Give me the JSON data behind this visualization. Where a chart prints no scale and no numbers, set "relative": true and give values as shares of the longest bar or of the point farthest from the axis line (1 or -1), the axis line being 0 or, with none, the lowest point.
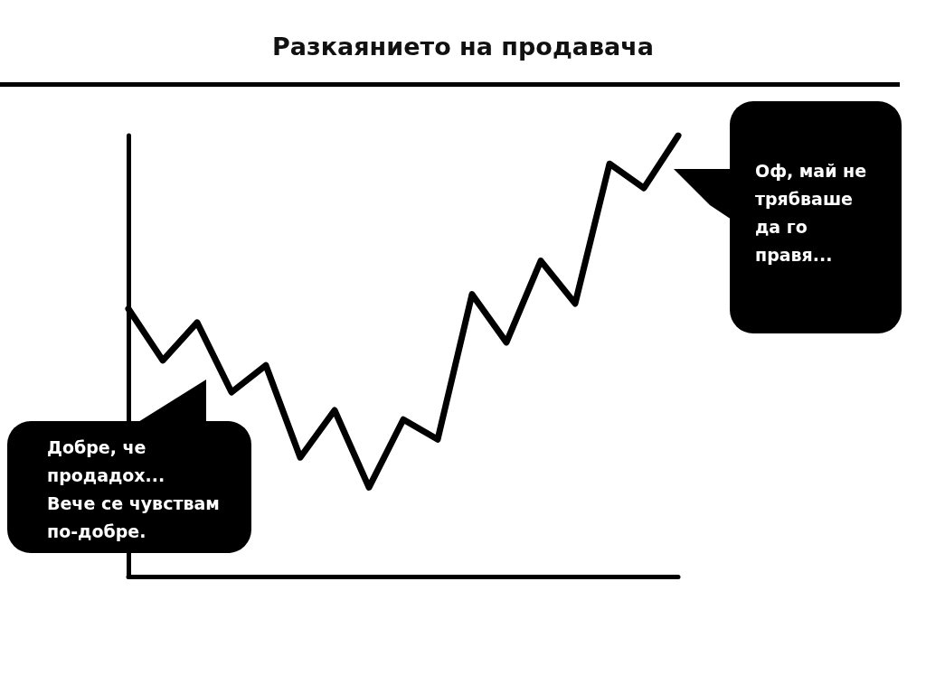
{
  "chart_data": {
    "type": "line",
    "title": "Разкаянието на продавача",
    "categories": [
      null,
      null,
      null,
      null,
      null,
      null,
      null,
      null,
      null,
      null,
      null,
      null,
      null,
      null,
      null,
      null,
      null
    ],
    "series": [
      {
        "color": "#000000",
        "values": [
          0.607,
          0.49,
          0.576,
          0.418,
          0.479,
          0.27,
          0.377,
          0.202,
          0.356,
          0.311,
          0.64,
          0.531,
          0.716,
          0.619,
          0.936,
          0.881,
          1
        ]
      }
    ],
    "relative": true,
    "marker": "none",
    "line_style": "solid",
    "grid": false,
    "annotations": [
      "Добре, че продадох...\nВече се чувствам по-добре.",
      "Оф, май не трябваше да го правя..."
    ]
  }
}
